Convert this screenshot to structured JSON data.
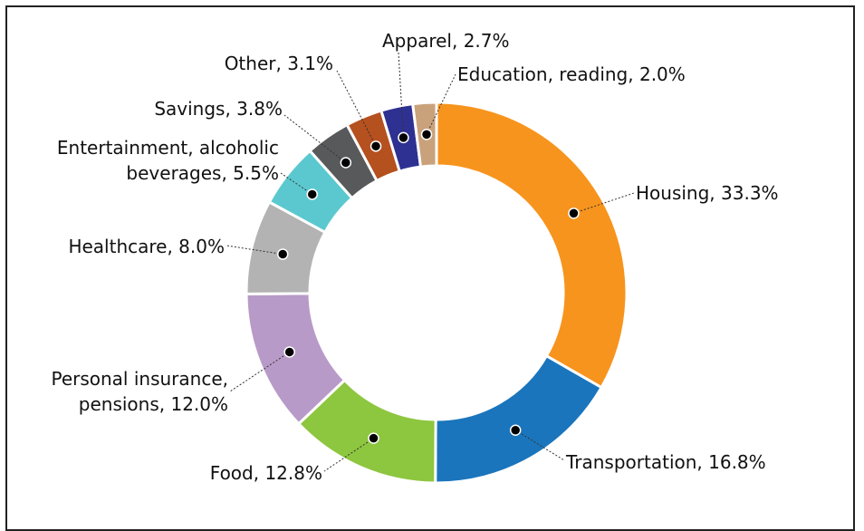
{
  "chart_data": {
    "type": "pie",
    "values": [
      33.3,
      16.8,
      12.8,
      12.0,
      8.0,
      5.5,
      3.8,
      3.1,
      2.7,
      2.0
    ],
    "value_labels": [
      "Housing, 33.3%",
      "Transportation, 16.8%",
      "Food, 12.8%",
      "Personal insurance,\npensions, 12.0%",
      "Healthcare, 8.0%",
      "Entertainment, alcoholic\nbeverages, 5.5%",
      "Savings, 3.8%",
      "Other, 3.1%",
      "Apparel, 2.7%",
      "Education, reading, 2.0%"
    ],
    "colors": [
      "#f7941d",
      "#1a75bc",
      "#8dc63f",
      "#b89ac8",
      "#b3b3b3",
      "#5bc8cf",
      "#58595b",
      "#b5501f",
      "#2e3192",
      "#c9a27c"
    ]
  }
}
